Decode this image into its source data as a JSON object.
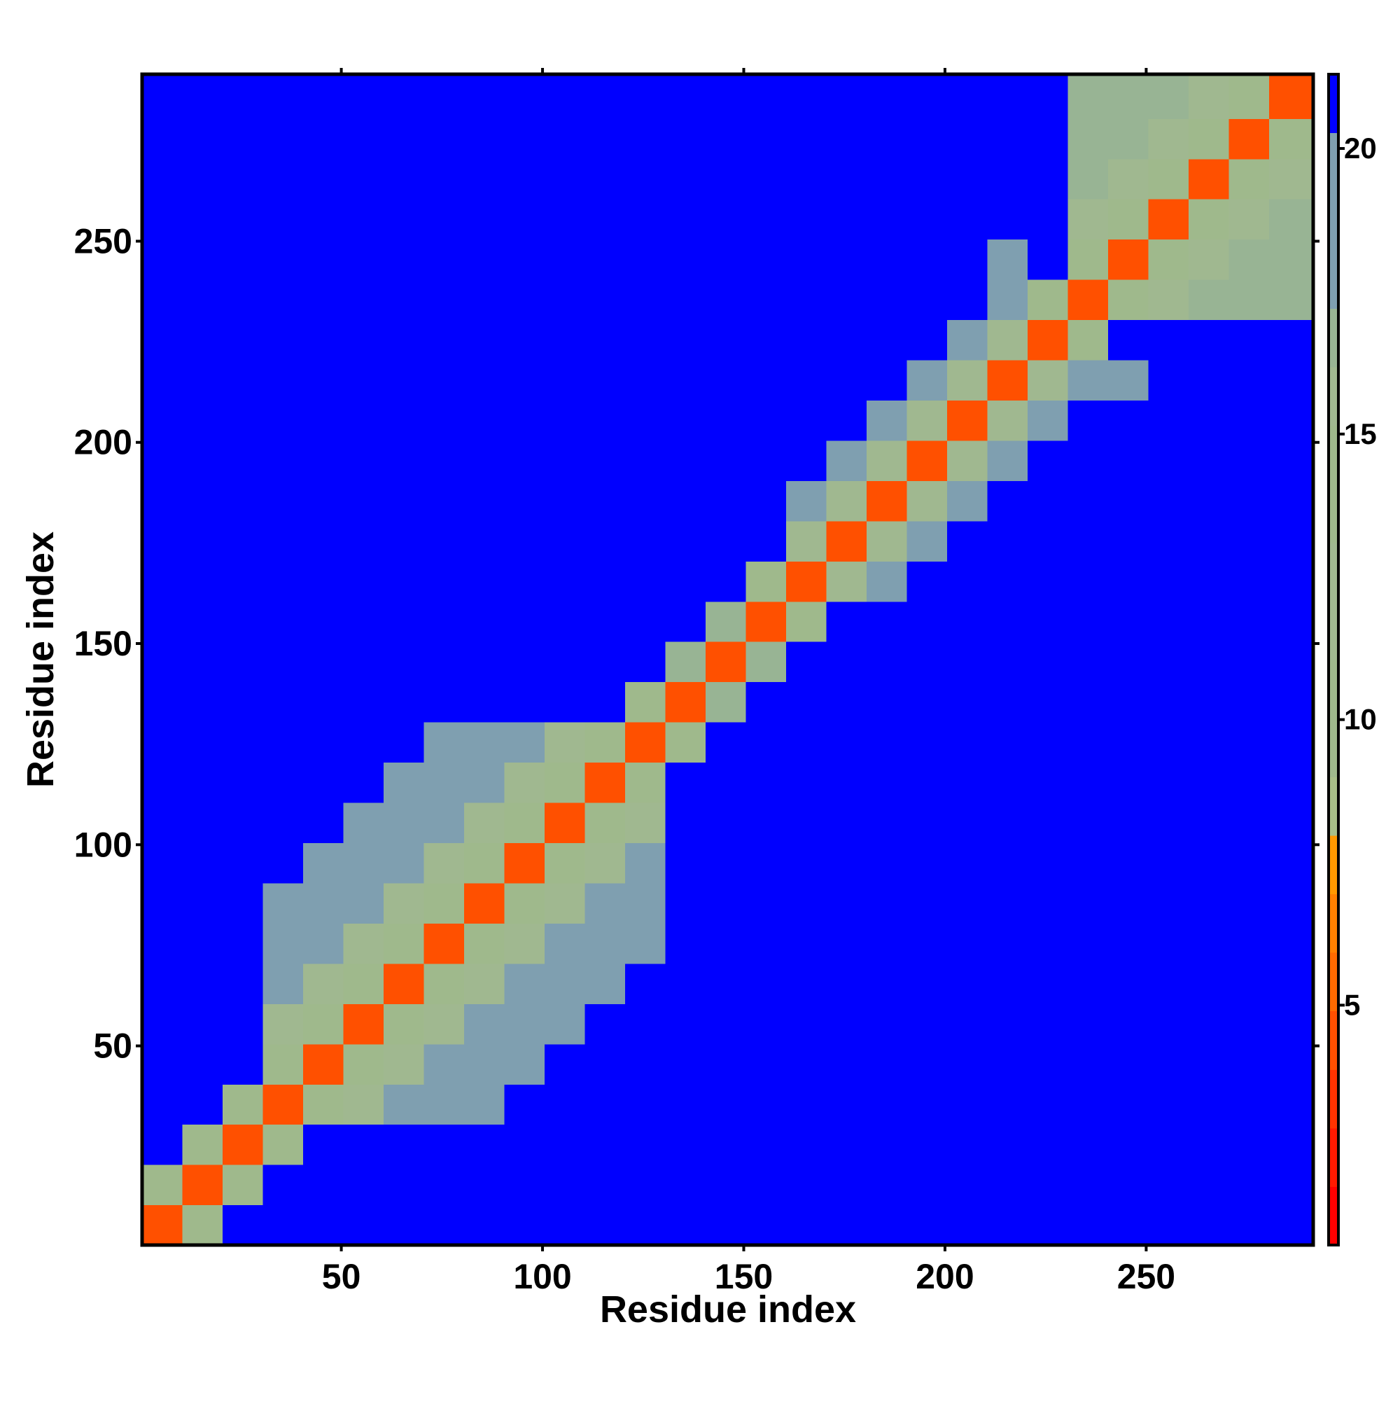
{
  "chart_data": {
    "type": "heatmap",
    "xlabel": "Residue index",
    "ylabel": "Residue index",
    "xlim": [
      0.5,
      291.5
    ],
    "ylim": [
      0.5,
      291.5
    ],
    "xticks": [
      50,
      100,
      150,
      200,
      250
    ],
    "yticks": [
      50,
      100,
      150,
      200,
      250
    ],
    "zlim": [
      0.8,
      21.3
    ],
    "zticks": [
      5,
      10,
      15,
      20
    ],
    "xbins": [
      0.5,
      10.5,
      20.5,
      30.5,
      40.5,
      50.5,
      60.5,
      70.5,
      80.5,
      90.5,
      100.5,
      110.5,
      120.5,
      130.5,
      140.5,
      150.5,
      160.5,
      170.5,
      180.5,
      190.5,
      200.5,
      210.5,
      220.5,
      230.5,
      240.5,
      250.5,
      260.5,
      270.5,
      280.5,
      291.5
    ],
    "ybins": [
      0.5,
      10.5,
      20.5,
      30.5,
      40.5,
      50.5,
      60.5,
      70.5,
      80.5,
      90.5,
      100.5,
      110.5,
      120.5,
      130.5,
      140.5,
      150.5,
      160.5,
      170.5,
      180.5,
      190.5,
      200.5,
      210.5,
      220.5,
      230.5,
      240.5,
      250.5,
      260.5,
      270.5,
      280.5,
      291.5
    ],
    "colorscale": [
      "#ff0000",
      "#ff1a00",
      "#ff3300",
      "#ff5000",
      "#ff6a00",
      "#ff8000",
      "#ff9900",
      "#a8bf88",
      "#9fb98c",
      "#9fb98c",
      "#a0b890",
      "#a0b890",
      "#9fb98c",
      "#9fb98c",
      "#a0b890",
      "#98b494",
      "#7f9fb0",
      "#7f9fb0",
      "#7f9fb0",
      "#0000ff"
    ],
    "z": [
      [
        4,
        14,
        21,
        21,
        21,
        21,
        21,
        21,
        21,
        21,
        21,
        21,
        21,
        21,
        21,
        21,
        21,
        21,
        21,
        21,
        21,
        21,
        21,
        21,
        21,
        21,
        21,
        21,
        21
      ],
      [
        14,
        4,
        14,
        21,
        21,
        21,
        21,
        21,
        21,
        21,
        21,
        21,
        21,
        21,
        21,
        21,
        21,
        21,
        21,
        21,
        21,
        21,
        21,
        21,
        21,
        21,
        21,
        21,
        21
      ],
      [
        21,
        14,
        4,
        14,
        21,
        21,
        21,
        21,
        21,
        21,
        21,
        21,
        21,
        21,
        21,
        21,
        21,
        21,
        21,
        21,
        21,
        21,
        21,
        21,
        21,
        21,
        21,
        21,
        21
      ],
      [
        21,
        21,
        14,
        4,
        14,
        16,
        18,
        18,
        18,
        21,
        21,
        21,
        21,
        21,
        21,
        21,
        21,
        21,
        21,
        21,
        21,
        21,
        21,
        21,
        21,
        21,
        21,
        21,
        21
      ],
      [
        21,
        21,
        21,
        14,
        4,
        14,
        16,
        18,
        18,
        18,
        21,
        21,
        21,
        21,
        21,
        21,
        21,
        21,
        21,
        21,
        21,
        21,
        21,
        21,
        21,
        21,
        21,
        21,
        21
      ],
      [
        21,
        21,
        21,
        16,
        14,
        4,
        14,
        16,
        18,
        18,
        18,
        21,
        21,
        21,
        21,
        21,
        21,
        21,
        21,
        21,
        21,
        21,
        21,
        21,
        21,
        21,
        21,
        21,
        21
      ],
      [
        21,
        21,
        21,
        18,
        16,
        14,
        4,
        14,
        16,
        18,
        18,
        18,
        21,
        21,
        21,
        21,
        21,
        21,
        21,
        21,
        21,
        21,
        21,
        21,
        21,
        21,
        21,
        21,
        21
      ],
      [
        21,
        21,
        21,
        18,
        18,
        16,
        14,
        4,
        14,
        16,
        18,
        18,
        18,
        21,
        21,
        21,
        21,
        21,
        21,
        21,
        21,
        21,
        21,
        21,
        21,
        21,
        21,
        21,
        21
      ],
      [
        21,
        21,
        21,
        18,
        18,
        18,
        16,
        14,
        4,
        14,
        16,
        18,
        18,
        21,
        21,
        21,
        21,
        21,
        21,
        21,
        21,
        21,
        21,
        21,
        21,
        21,
        21,
        21,
        21
      ],
      [
        21,
        21,
        21,
        21,
        18,
        18,
        18,
        16,
        14,
        4,
        14,
        16,
        18,
        21,
        21,
        21,
        21,
        21,
        21,
        21,
        21,
        21,
        21,
        21,
        21,
        21,
        21,
        21,
        21
      ],
      [
        21,
        21,
        21,
        21,
        21,
        18,
        18,
        18,
        16,
        14,
        4,
        14,
        16,
        21,
        21,
        21,
        21,
        21,
        21,
        21,
        21,
        21,
        21,
        21,
        21,
        21,
        21,
        21,
        21
      ],
      [
        21,
        21,
        21,
        21,
        21,
        21,
        18,
        18,
        18,
        16,
        14,
        4,
        14,
        21,
        21,
        21,
        21,
        21,
        21,
        21,
        21,
        21,
        21,
        21,
        21,
        21,
        21,
        21,
        21
      ],
      [
        21,
        21,
        21,
        21,
        21,
        21,
        21,
        18,
        18,
        18,
        16,
        14,
        4,
        14,
        21,
        21,
        21,
        21,
        21,
        21,
        21,
        21,
        21,
        21,
        21,
        21,
        21,
        21,
        21
      ],
      [
        21,
        21,
        21,
        21,
        21,
        21,
        21,
        21,
        21,
        21,
        21,
        21,
        14,
        4,
        17,
        21,
        21,
        21,
        21,
        21,
        21,
        21,
        21,
        21,
        21,
        21,
        21,
        21,
        21
      ],
      [
        21,
        21,
        21,
        21,
        21,
        21,
        21,
        21,
        21,
        21,
        21,
        21,
        21,
        17,
        4,
        17,
        21,
        21,
        21,
        21,
        21,
        21,
        21,
        21,
        21,
        21,
        21,
        21,
        21
      ],
      [
        21,
        21,
        21,
        21,
        21,
        21,
        21,
        21,
        21,
        21,
        21,
        21,
        21,
        21,
        17,
        4,
        14,
        21,
        21,
        21,
        21,
        21,
        21,
        21,
        21,
        21,
        21,
        21,
        21
      ],
      [
        21,
        21,
        21,
        21,
        21,
        21,
        21,
        21,
        21,
        21,
        21,
        21,
        21,
        21,
        21,
        14,
        4,
        12,
        18,
        21,
        21,
        21,
        21,
        21,
        21,
        21,
        21,
        21,
        21
      ],
      [
        21,
        21,
        21,
        21,
        21,
        21,
        21,
        21,
        21,
        21,
        21,
        21,
        21,
        21,
        21,
        21,
        12,
        4,
        12,
        18,
        21,
        21,
        21,
        21,
        21,
        21,
        21,
        21,
        21
      ],
      [
        21,
        21,
        21,
        21,
        21,
        21,
        21,
        21,
        21,
        21,
        21,
        21,
        21,
        21,
        21,
        21,
        18,
        12,
        4,
        12,
        18,
        21,
        21,
        21,
        21,
        21,
        21,
        21,
        21
      ],
      [
        21,
        21,
        21,
        21,
        21,
        21,
        21,
        21,
        21,
        21,
        21,
        21,
        21,
        21,
        21,
        21,
        21,
        18,
        12,
        4,
        12,
        18,
        21,
        21,
        21,
        21,
        21,
        21,
        21
      ],
      [
        21,
        21,
        21,
        21,
        21,
        21,
        21,
        21,
        21,
        21,
        21,
        21,
        21,
        21,
        21,
        21,
        21,
        21,
        18,
        12,
        4,
        12,
        18,
        21,
        21,
        21,
        21,
        21,
        21
      ],
      [
        21,
        21,
        21,
        21,
        21,
        21,
        21,
        21,
        21,
        21,
        21,
        21,
        21,
        21,
        21,
        21,
        21,
        21,
        21,
        18,
        12,
        4,
        12,
        18,
        18,
        21,
        21,
        21,
        21
      ],
      [
        21,
        21,
        21,
        21,
        21,
        21,
        21,
        21,
        21,
        21,
        21,
        21,
        21,
        21,
        21,
        21,
        21,
        21,
        21,
        21,
        18,
        12,
        4,
        14,
        21,
        21,
        21,
        21,
        21
      ],
      [
        21,
        21,
        21,
        21,
        21,
        21,
        21,
        21,
        21,
        21,
        21,
        21,
        21,
        21,
        21,
        21,
        21,
        21,
        21,
        21,
        21,
        18,
        14,
        4,
        14,
        16,
        17,
        17,
        17
      ],
      [
        21,
        21,
        21,
        21,
        21,
        21,
        21,
        21,
        21,
        21,
        21,
        21,
        21,
        21,
        21,
        21,
        21,
        21,
        21,
        21,
        21,
        18,
        21,
        14,
        4,
        14,
        16,
        17,
        17
      ],
      [
        21,
        21,
        21,
        21,
        21,
        21,
        21,
        21,
        21,
        21,
        21,
        21,
        21,
        21,
        21,
        21,
        21,
        21,
        21,
        21,
        21,
        21,
        21,
        16,
        14,
        4,
        14,
        16,
        17
      ],
      [
        21,
        21,
        21,
        21,
        21,
        21,
        21,
        21,
        21,
        21,
        21,
        21,
        21,
        21,
        21,
        21,
        21,
        21,
        21,
        21,
        21,
        21,
        21,
        17,
        16,
        14,
        4,
        14,
        16
      ],
      [
        21,
        21,
        21,
        21,
        21,
        21,
        21,
        21,
        21,
        21,
        21,
        21,
        21,
        21,
        21,
        21,
        21,
        21,
        21,
        21,
        21,
        21,
        21,
        17,
        17,
        16,
        14,
        4,
        14
      ],
      [
        21,
        21,
        21,
        21,
        21,
        21,
        21,
        21,
        21,
        21,
        21,
        21,
        21,
        21,
        21,
        21,
        21,
        21,
        21,
        21,
        21,
        21,
        21,
        17,
        17,
        17,
        16,
        14,
        4
      ]
    ]
  }
}
